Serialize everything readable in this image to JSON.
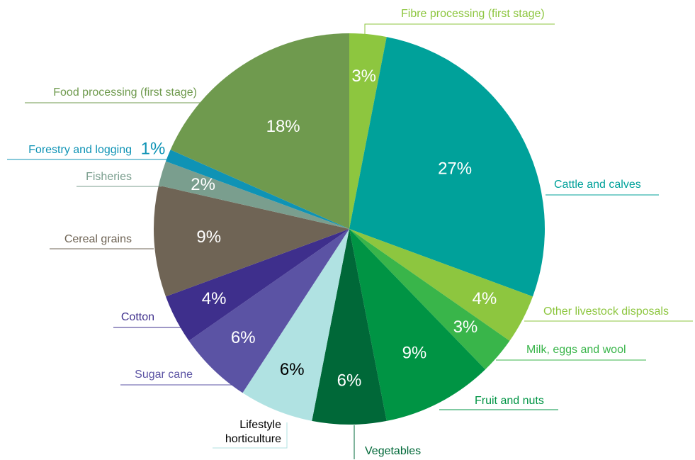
{
  "chart_data": {
    "type": "pie",
    "categories": [
      "Fibre processing (first stage)",
      "Cattle and calves",
      "Other livestock disposals",
      "Milk, eggs and wool",
      "Fruit and nuts",
      "Vegetables",
      "Lifestyle horticulture",
      "Sugar cane",
      "Cotton",
      "Cereal grains",
      "Fisheries",
      "Forestry and logging",
      "Food processing (first stage)"
    ],
    "values": [
      3,
      27,
      4,
      3,
      9,
      6,
      6,
      6,
      4,
      9,
      2,
      1,
      18
    ],
    "value_labels": [
      "3%",
      "27%",
      "4%",
      "3%",
      "9%",
      "6%",
      "6%",
      "6%",
      "4%",
      "9%",
      "2%",
      "1%",
      "18%"
    ],
    "colors": [
      "#8dc63f",
      "#00a19a",
      "#8dc63f",
      "#39b54a",
      "#009444",
      "#006838",
      "#b0e2e2",
      "#5b53a4",
      "#3e2f8c",
      "#6f6455",
      "#7a9e8e",
      "#0f93b5",
      "#6f9a4e"
    ]
  }
}
